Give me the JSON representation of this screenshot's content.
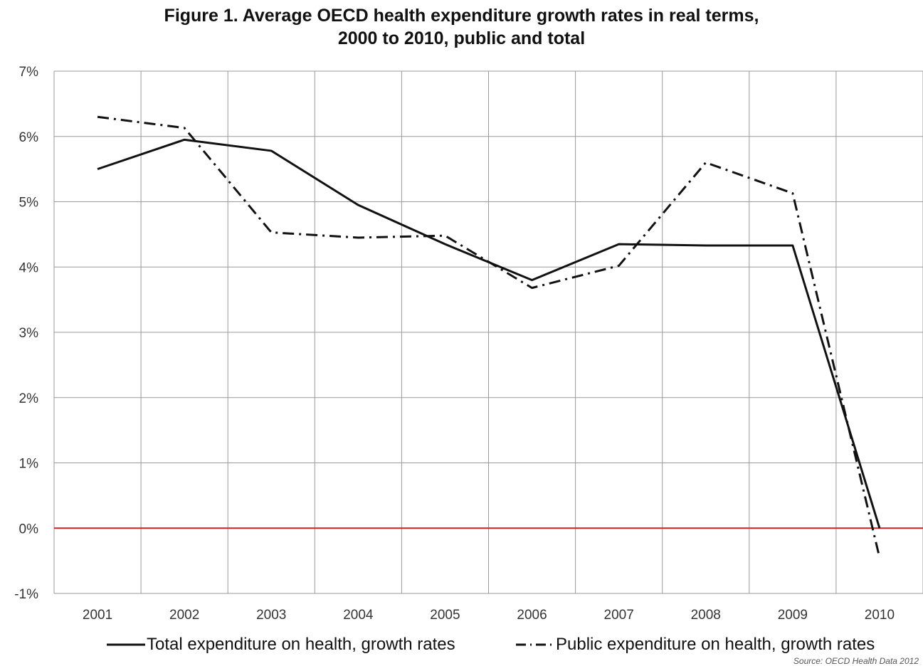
{
  "title_line1": "Figure 1. Average OECD health expenditure growth rates in real terms,",
  "title_line2": "2000 to 2010, public and total",
  "source": "Source: OECD Health Data 2012",
  "colors": {
    "zero_line": "#cc2222",
    "grid": "#9a9a9a",
    "series": "#111111"
  },
  "chart_data": {
    "type": "line",
    "title": "Figure 1. Average OECD health expenditure growth rates in real terms, 2000 to 2010, public and total",
    "xlabel": "",
    "ylabel": "",
    "categories": [
      "2001",
      "2002",
      "2003",
      "2004",
      "2005",
      "2006",
      "2007",
      "2008",
      "2009",
      "2010"
    ],
    "y_ticks": [
      -1,
      0,
      1,
      2,
      3,
      4,
      5,
      6,
      7
    ],
    "y_tick_labels": [
      "-1%",
      "0%",
      "1%",
      "2%",
      "3%",
      "4%",
      "5%",
      "6%",
      "7%"
    ],
    "ylim": [
      -1,
      7
    ],
    "grid": true,
    "legend_position": "bottom",
    "series": [
      {
        "name": "Total expenditure on health, growth rates",
        "style": "solid",
        "values": [
          5.5,
          5.95,
          5.78,
          4.95,
          4.35,
          3.8,
          4.35,
          4.33,
          4.33,
          0.0
        ]
      },
      {
        "name": "Public expenditure on health, growth rates",
        "style": "dash-dot",
        "values": [
          6.3,
          6.13,
          4.53,
          4.45,
          4.48,
          3.68,
          4.02,
          5.6,
          5.13,
          -0.45
        ]
      }
    ]
  }
}
